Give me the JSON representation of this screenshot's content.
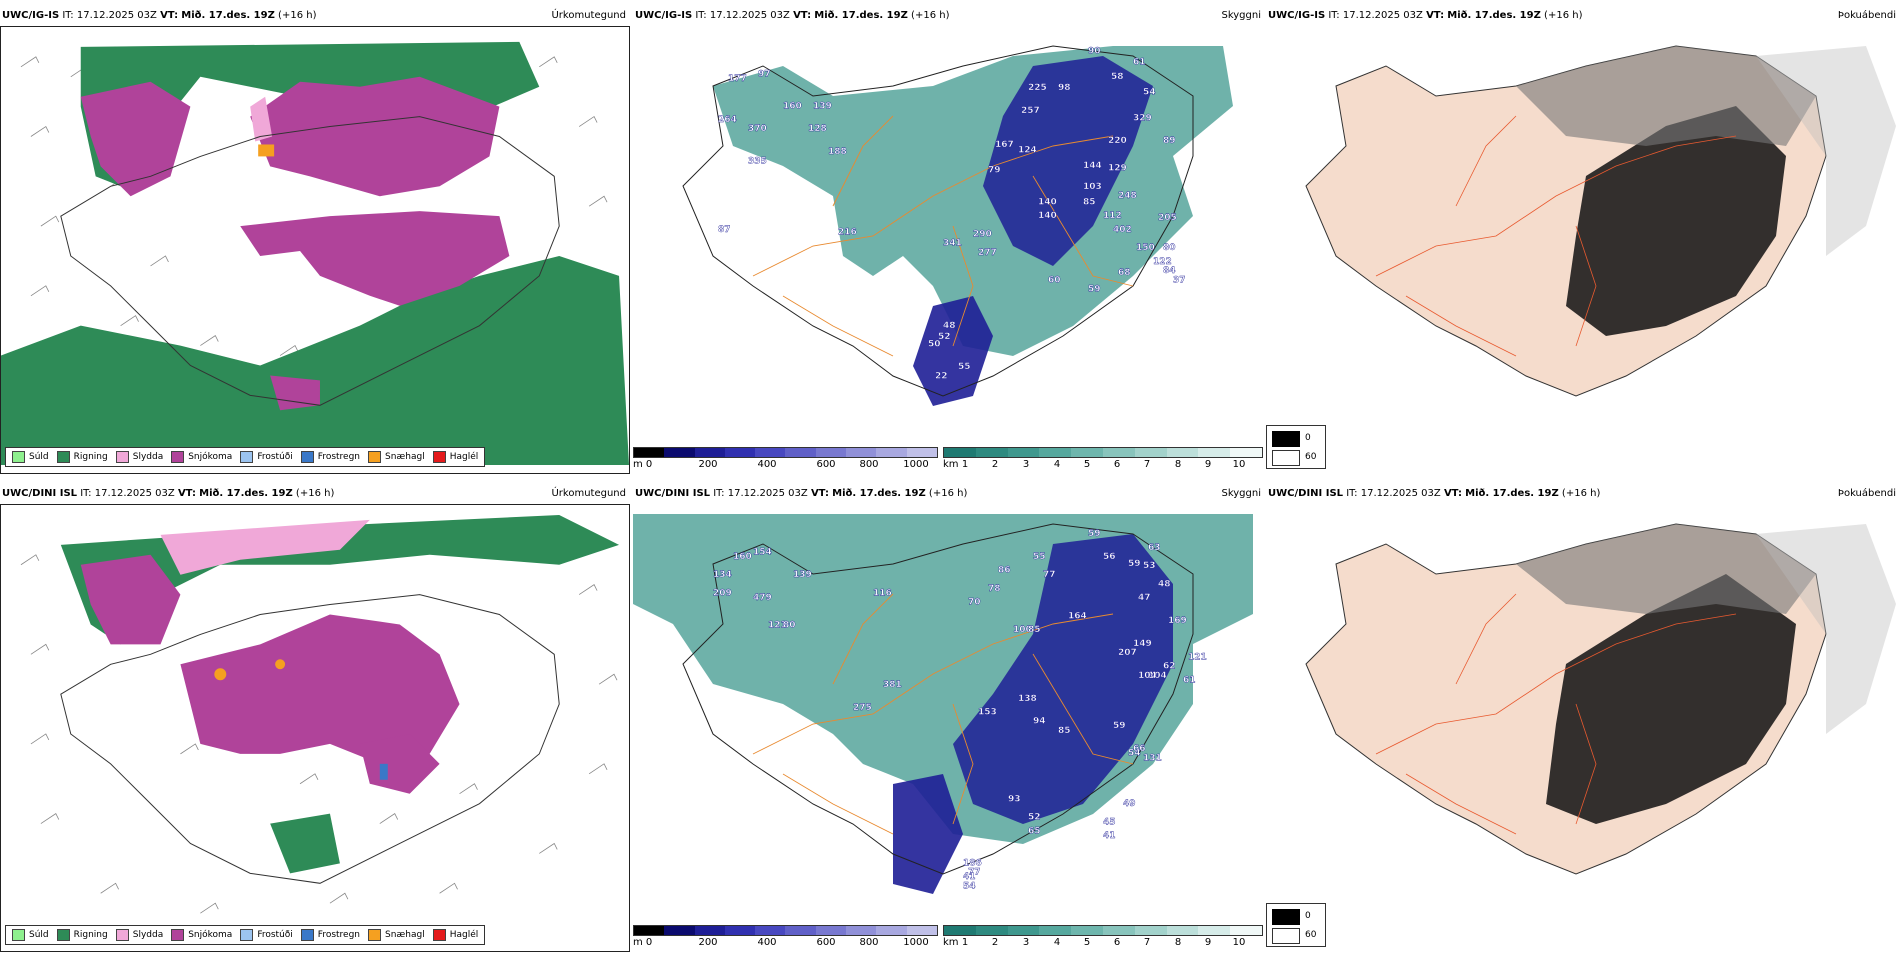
{
  "rows": [
    {
      "model": "UWC/IG-IS",
      "it_label": "IT:",
      "it_value": "17.12.2025 03Z",
      "vt_label": "VT:",
      "vt_value": "Mið. 17.des. 19Z",
      "lead": "(+16 h)"
    },
    {
      "model": "UWC/DINI ISL",
      "it_label": "IT:",
      "it_value": "17.12.2025 03Z",
      "vt_label": "VT:",
      "vt_value": "Mið. 17.des. 19Z",
      "lead": "(+16 h)"
    }
  ],
  "panel_titles": {
    "precip": "Úrkomutegund",
    "visibility": "Skyggni",
    "fog": "Þokuábendi"
  },
  "precip_legend": [
    {
      "label": "Súld",
      "color": "#8ef08e"
    },
    {
      "label": "Rigning",
      "color": "#2e8b57"
    },
    {
      "label": "Slydda",
      "color": "#f0a8d8"
    },
    {
      "label": "Snjókoma",
      "color": "#b0439a"
    },
    {
      "label": "Frostúði",
      "color": "#9cc4f0"
    },
    {
      "label": "Frostregn",
      "color": "#3a78c8"
    },
    {
      "label": "Snæhagl",
      "color": "#f5a020"
    },
    {
      "label": "Haglél",
      "color": "#e41a1c"
    }
  ],
  "height_scale": {
    "unit": "m",
    "ticks": [
      "0",
      "200",
      "400",
      "600",
      "800",
      "1000"
    ],
    "colors": [
      "#000000",
      "#0a0a6e",
      "#1e1e96",
      "#3030b0",
      "#4848c0",
      "#6060c8",
      "#7878d0",
      "#9090d8",
      "#a8a8e0",
      "#c0c0e8"
    ]
  },
  "visibility_scale": {
    "unit": "km",
    "ticks": [
      "1",
      "2",
      "3",
      "4",
      "5",
      "6",
      "7",
      "8",
      "9",
      "10"
    ],
    "colors": [
      "#1f7a72",
      "#2e8a80",
      "#3f988e",
      "#56a89e",
      "#6eb6ad",
      "#88c4bc",
      "#a2d2cb",
      "#bcdfda",
      "#d6ece9",
      "#f0f8f7"
    ]
  },
  "fog_legend": {
    "black": "0",
    "white": "60"
  },
  "vis_labels_row1": [
    "90",
    "58",
    "61",
    "98",
    "54",
    "177",
    "97",
    "160",
    "264",
    "370",
    "335",
    "139",
    "128",
    "188",
    "257",
    "225",
    "329",
    "220",
    "89",
    "167",
    "124",
    "144",
    "129",
    "79",
    "103",
    "85",
    "248",
    "112",
    "205",
    "140",
    "140",
    "402",
    "150",
    "80",
    "122",
    "84",
    "37",
    "68",
    "216",
    "87",
    "341",
    "290",
    "277",
    "60",
    "59",
    "48",
    "52",
    "50",
    "55",
    "22"
  ],
  "vis_labels_row2": [
    "59",
    "56",
    "59",
    "53",
    "63",
    "48",
    "47",
    "55",
    "77",
    "160",
    "154",
    "134",
    "209",
    "479",
    "139",
    "116",
    "86",
    "78",
    "169",
    "100",
    "85",
    "164",
    "121",
    "80",
    "70",
    "104",
    "207",
    "149",
    "104",
    "62",
    "61",
    "121",
    "381",
    "275",
    "153",
    "138",
    "94",
    "85",
    "59",
    "66",
    "131",
    "54",
    "93",
    "52",
    "65",
    "45",
    "41",
    "49",
    "186",
    "77",
    "54",
    "41"
  ]
}
